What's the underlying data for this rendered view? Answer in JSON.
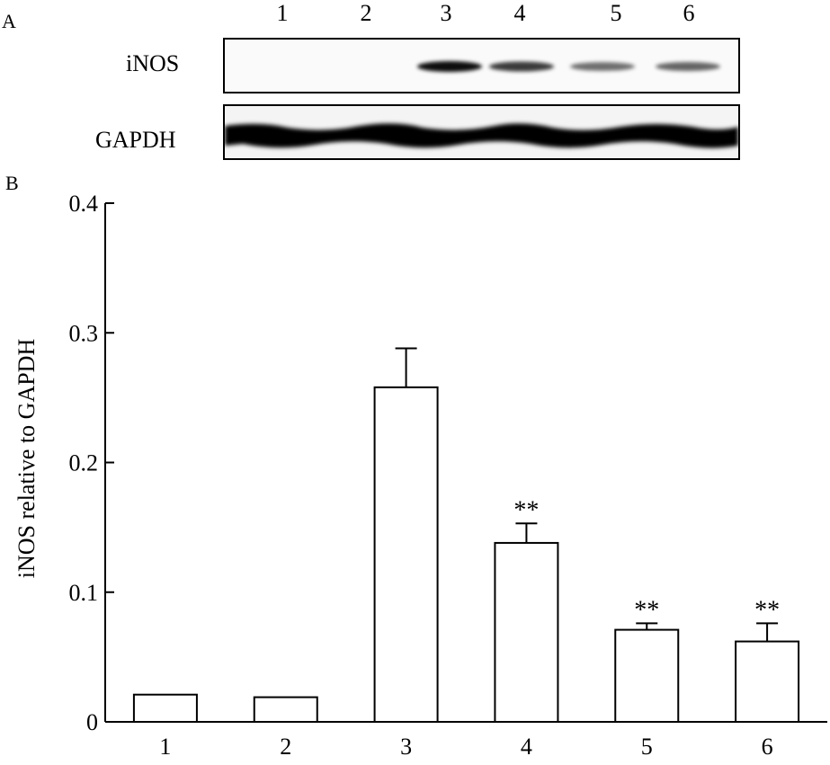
{
  "panels": {
    "a": "A",
    "b": "B"
  },
  "blot": {
    "lanes": [
      "1",
      "2",
      "3",
      "4",
      "5",
      "6"
    ],
    "rows": [
      "iNOS",
      "GAPDH"
    ],
    "inos_band_intensity": [
      0,
      0,
      1.0,
      0.75,
      0.45,
      0.5
    ]
  },
  "chart_data": {
    "type": "bar",
    "categories": [
      "1",
      "2",
      "3",
      "4",
      "5",
      "6"
    ],
    "values": [
      0.021,
      0.019,
      0.258,
      0.138,
      0.071,
      0.062
    ],
    "errors": [
      0,
      0,
      0.03,
      0.015,
      0.005,
      0.014
    ],
    "annotations": [
      "",
      "",
      "",
      "**",
      "**",
      "**"
    ],
    "ylabel": "iNOS relative to GAPDH",
    "ylim": [
      0,
      0.4
    ],
    "yticks": [
      0,
      0.1,
      0.2,
      0.3,
      0.4
    ],
    "ytick_labels": [
      "0",
      "0.1",
      "0.2",
      "0.3",
      "0.4"
    ],
    "grid": false,
    "bar_fill": "#ffffff",
    "bar_stroke": "#000000"
  }
}
